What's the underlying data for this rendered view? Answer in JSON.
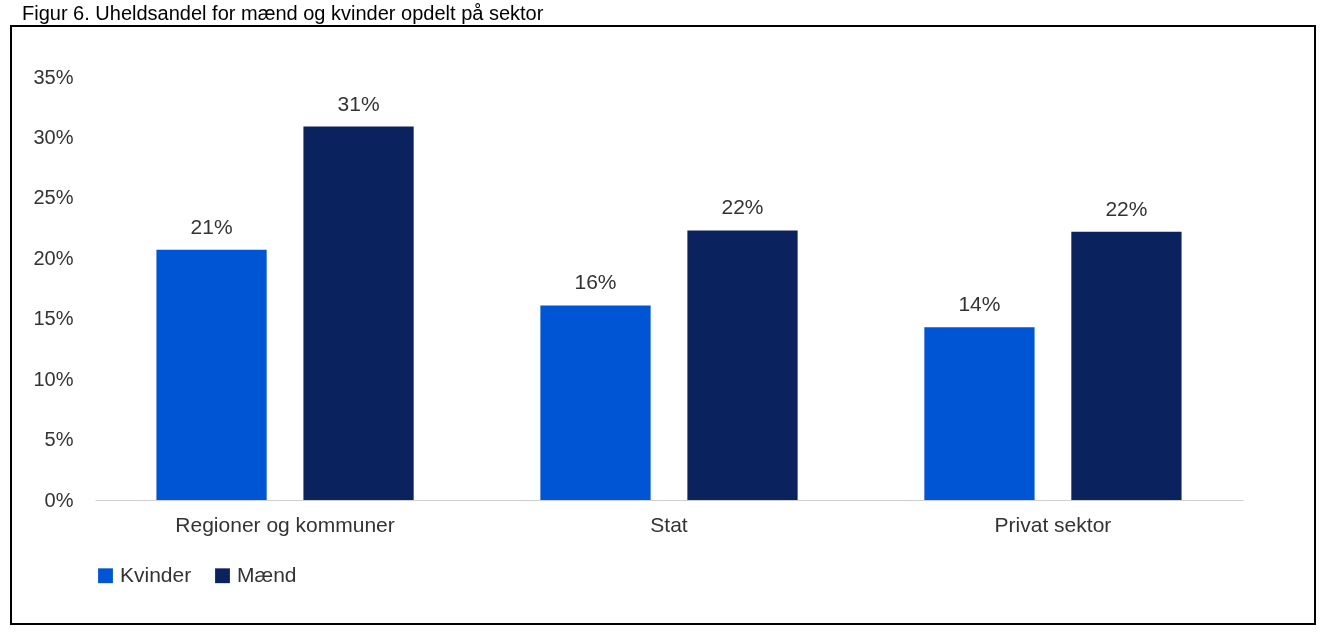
{
  "chart_data": {
    "type": "bar",
    "title": "Figur 6. Uheldsandel for mænd og kvinder opdelt på sektor",
    "categories": [
      "Regioner og kommuner",
      "Stat",
      "Privat sektor"
    ],
    "series": [
      {
        "name": "Kvinder",
        "color": "#0055d4",
        "values": [
          20.7,
          16.1,
          14.3
        ],
        "value_labels": [
          "21%",
          "16%",
          "14%"
        ]
      },
      {
        "name": "Mænd",
        "color": "#0a225e",
        "values": [
          30.9,
          22.3,
          22.2
        ],
        "value_labels": [
          "31%",
          "22%",
          "22%"
        ]
      }
    ],
    "ylim": [
      0,
      35
    ],
    "yticks": [
      {
        "value": 0,
        "label": "0%"
      },
      {
        "value": 5,
        "label": "5%"
      },
      {
        "value": 10,
        "label": "10%"
      },
      {
        "value": 15,
        "label": "15%"
      },
      {
        "value": 20,
        "label": "20%"
      },
      {
        "value": 25,
        "label": "25%"
      },
      {
        "value": 30,
        "label": "30%"
      },
      {
        "value": 35,
        "label": "35%"
      }
    ],
    "grid": false,
    "legend": "bottom"
  }
}
